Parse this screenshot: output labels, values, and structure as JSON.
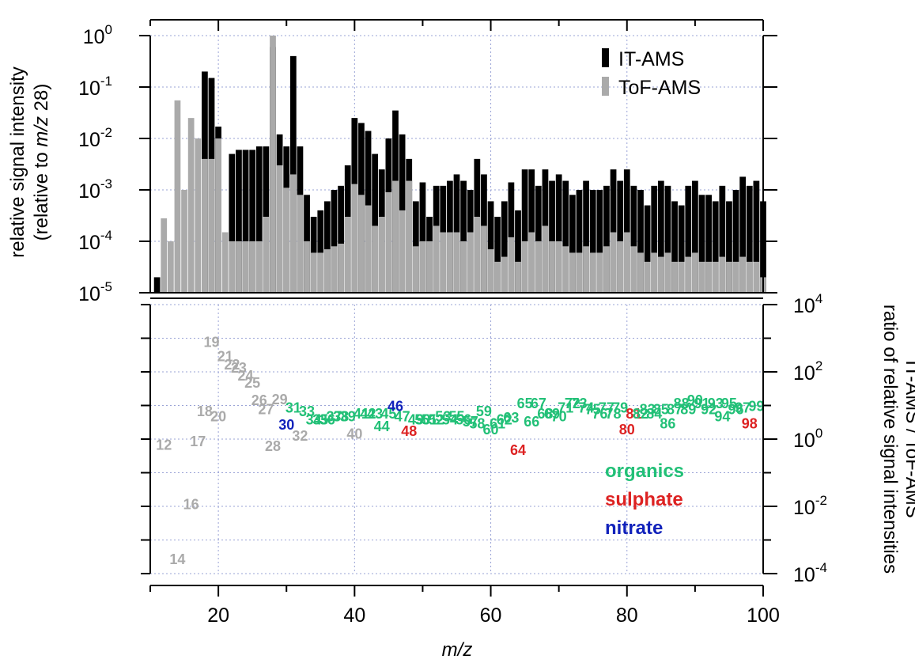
{
  "chart_data": [
    {
      "type": "bar",
      "panel": "top",
      "yscale": "log",
      "ylim": [
        1e-05,
        1
      ],
      "xlim": [
        10,
        100
      ],
      "ylabel_line1": "relative signal intensity",
      "ylabel_line2_prefix": "(relative to ",
      "ylabel_line2_italic": "m/z",
      "ylabel_line2_suffix": " 28)",
      "ytick_labels": [
        {
          "base": "10",
          "exp": "-5",
          "value": 1e-05
        },
        {
          "base": "10",
          "exp": "-4",
          "value": 0.0001
        },
        {
          "base": "10",
          "exp": "-3",
          "value": 0.001
        },
        {
          "base": "10",
          "exp": "-2",
          "value": 0.01
        },
        {
          "base": "10",
          "exp": "-1",
          "value": 0.1
        },
        {
          "base": "10",
          "exp": "0",
          "value": 1
        }
      ],
      "legend": [
        {
          "name": "IT-AMS",
          "color": "#000000"
        },
        {
          "name": "ToF-AMS",
          "color": "#aaaaaa"
        }
      ],
      "legend_position": "top-right",
      "grid": true,
      "x": [
        11,
        12,
        13,
        14,
        15,
        16,
        17,
        18,
        19,
        20,
        21,
        22,
        23,
        24,
        25,
        26,
        27,
        28,
        29,
        30,
        31,
        32,
        33,
        34,
        35,
        36,
        37,
        38,
        39,
        40,
        41,
        42,
        43,
        44,
        45,
        46,
        47,
        48,
        49,
        50,
        51,
        52,
        53,
        54,
        55,
        56,
        57,
        58,
        59,
        60,
        61,
        62,
        63,
        64,
        65,
        66,
        67,
        68,
        69,
        70,
        71,
        72,
        73,
        74,
        75,
        76,
        77,
        78,
        79,
        80,
        81,
        82,
        83,
        84,
        85,
        86,
        87,
        88,
        89,
        90,
        91,
        92,
        93,
        94,
        95,
        96,
        97,
        98,
        99,
        100
      ],
      "series": [
        {
          "name": "IT-AMS",
          "values": [
            2e-05,
            1e-05,
            1e-05,
            1e-05,
            1e-05,
            1e-05,
            1e-05,
            0.2,
            0.15,
            0.017,
            1e-05,
            0.005,
            0.006,
            0.006,
            0.006,
            0.007,
            0.007,
            0.6,
            0.012,
            0.007,
            0.4,
            0.007,
            0.0008,
            0.0003,
            0.0004,
            0.0006,
            0.001,
            0.0012,
            0.003,
            0.025,
            0.02,
            0.014,
            0.005,
            0.0025,
            0.01,
            0.035,
            0.012,
            0.004,
            0.0006,
            0.0014,
            0.0003,
            0.0012,
            0.0012,
            0.0015,
            0.002,
            0.0015,
            0.001,
            0.004,
            0.002,
            0.0006,
            0.0003,
            0.0006,
            0.0014,
            0.0004,
            0.0025,
            0.0025,
            0.0012,
            0.0025,
            0.0015,
            0.002,
            0.0015,
            0.0008,
            0.001,
            0.0015,
            0.001,
            0.001,
            0.0012,
            0.0025,
            0.0015,
            0.0025,
            0.0012,
            0.001,
            0.0005,
            0.0012,
            0.0015,
            0.0012,
            0.0006,
            0.0005,
            0.0012,
            0.0015,
            0.0008,
            0.0008,
            0.0006,
            0.0012,
            0.0006,
            0.001,
            0.0018,
            0.0012,
            0.0015,
            0.0006
          ],
          "color": "#000000"
        },
        {
          "name": "ToF-AMS",
          "values": [
            1e-05,
            0.00028,
            0.0001,
            0.055,
            0.001,
            0.025,
            0.01,
            0.004,
            0.004,
            0.01,
            0.00015,
            0.0001,
            0.0001,
            0.0001,
            0.0001,
            0.0001,
            0.0003,
            1.0,
            0.003,
            0.0011,
            0.002,
            0.0008,
            0.0001,
            6e-05,
            6e-05,
            7e-05,
            8e-05,
            9e-05,
            0.0003,
            0.0013,
            0.0008,
            0.0005,
            0.0002,
            0.0003,
            0.0009,
            0.0015,
            0.0004,
            0.0015,
            8e-05,
            0.0001,
            0.0001,
            0.0002,
            0.00015,
            0.00015,
            0.00015,
            0.0001,
            0.00015,
            0.0003,
            0.0002,
            7e-05,
            4e-05,
            5e-05,
            0.00012,
            4e-05,
            0.0001,
            0.00015,
            0.0001,
            0.0002,
            0.0001,
            0.0001,
            8e-05,
            6e-05,
            6e-05,
            8e-05,
            6e-05,
            6e-05,
            8e-05,
            0.00015,
            0.0001,
            0.00015,
            8e-05,
            6e-05,
            4e-05,
            6e-05,
            5e-05,
            6e-05,
            4e-05,
            4e-05,
            5e-05,
            6e-05,
            4e-05,
            4e-05,
            4e-05,
            5e-05,
            4e-05,
            4e-05,
            5e-05,
            4e-05,
            4e-05,
            2e-05
          ],
          "color": "#aaaaaa"
        }
      ]
    },
    {
      "type": "scatter",
      "panel": "bottom",
      "marker": "text-label",
      "yscale": "log",
      "ylim": [
        0.0001,
        10000.0
      ],
      "xlim": [
        10,
        100
      ],
      "xlabel": "m/z",
      "xtick_labels": [
        "20",
        "40",
        "60",
        "80",
        "100"
      ],
      "xticks": [
        20,
        40,
        60,
        80,
        100
      ],
      "ylabel_line1": "ratio of relative signal intensities",
      "ylabel_line2": "IT-AMS / ToF-AMS",
      "ytick_labels": [
        {
          "base": "10",
          "exp": "-4",
          "value": 0.0001
        },
        {
          "base": "10",
          "exp": "-2",
          "value": 0.01
        },
        {
          "base": "10",
          "exp": "0",
          "value": 1
        },
        {
          "base": "10",
          "exp": "2",
          "value": 100
        },
        {
          "base": "10",
          "exp": "4",
          "value": 10000
        }
      ],
      "yaxis_side": "right",
      "grid": true,
      "legend": [
        {
          "name": "organics",
          "color": "#22c077"
        },
        {
          "name": "sulphate",
          "color": "#dd2222"
        },
        {
          "name": "nitrate",
          "color": "#1122bb"
        }
      ],
      "legend_position": "bottom-right",
      "groups": [
        {
          "name": "other",
          "color": "#aaaaaa"
        },
        {
          "name": "organics",
          "color": "#22c077"
        },
        {
          "name": "sulphate",
          "color": "#dd2222"
        },
        {
          "name": "nitrate",
          "color": "#1122bb"
        }
      ],
      "points": [
        {
          "label": "12",
          "x": 12,
          "y": 0.7,
          "group": "other"
        },
        {
          "label": "14",
          "x": 14,
          "y": 0.00028,
          "group": "other"
        },
        {
          "label": "16",
          "x": 16,
          "y": 0.012,
          "group": "other"
        },
        {
          "label": "17",
          "x": 17,
          "y": 0.9,
          "group": "other"
        },
        {
          "label": "18",
          "x": 18,
          "y": 7,
          "group": "other"
        },
        {
          "label": "19",
          "x": 19,
          "y": 800,
          "group": "other"
        },
        {
          "label": "20",
          "x": 20,
          "y": 5,
          "group": "other"
        },
        {
          "label": "21",
          "x": 21,
          "y": 300,
          "group": "other"
        },
        {
          "label": "22",
          "x": 22,
          "y": 170,
          "group": "other"
        },
        {
          "label": "23",
          "x": 23,
          "y": 140,
          "group": "other"
        },
        {
          "label": "24",
          "x": 24,
          "y": 80,
          "group": "other"
        },
        {
          "label": "25",
          "x": 25,
          "y": 50,
          "group": "other"
        },
        {
          "label": "26",
          "x": 26,
          "y": 15,
          "group": "other"
        },
        {
          "label": "27",
          "x": 27,
          "y": 8,
          "group": "other"
        },
        {
          "label": "28",
          "x": 28,
          "y": 0.65,
          "group": "other"
        },
        {
          "label": "29",
          "x": 29,
          "y": 16,
          "group": "other"
        },
        {
          "label": "30",
          "x": 30,
          "y": 2.8,
          "group": "nitrate"
        },
        {
          "label": "31",
          "x": 31,
          "y": 9,
          "group": "organics"
        },
        {
          "label": "32",
          "x": 32,
          "y": 1.3,
          "group": "other"
        },
        {
          "label": "33",
          "x": 33,
          "y": 7,
          "group": "organics"
        },
        {
          "label": "34",
          "x": 34,
          "y": 4,
          "group": "organics"
        },
        {
          "label": "35",
          "x": 35,
          "y": 4,
          "group": "organics"
        },
        {
          "label": "36",
          "x": 36,
          "y": 4,
          "group": "organics"
        },
        {
          "label": "37",
          "x": 37,
          "y": 5,
          "group": "organics"
        },
        {
          "label": "38",
          "x": 38,
          "y": 5,
          "group": "organics"
        },
        {
          "label": "39",
          "x": 39,
          "y": 5,
          "group": "organics"
        },
        {
          "label": "40",
          "x": 40,
          "y": 1.5,
          "group": "other"
        },
        {
          "label": "41",
          "x": 41,
          "y": 6,
          "group": "organics"
        },
        {
          "label": "42",
          "x": 42,
          "y": 6,
          "group": "organics"
        },
        {
          "label": "43",
          "x": 43,
          "y": 6,
          "group": "organics"
        },
        {
          "label": "44",
          "x": 44,
          "y": 2.5,
          "group": "organics"
        },
        {
          "label": "45",
          "x": 45,
          "y": 6,
          "group": "organics"
        },
        {
          "label": "46",
          "x": 46,
          "y": 10,
          "group": "nitrate"
        },
        {
          "label": "47",
          "x": 47,
          "y": 5,
          "group": "organics"
        },
        {
          "label": "48",
          "x": 48,
          "y": 1.8,
          "group": "sulphate"
        },
        {
          "label": "49",
          "x": 49,
          "y": 4,
          "group": "organics"
        },
        {
          "label": "50",
          "x": 50,
          "y": 4,
          "group": "organics"
        },
        {
          "label": "51",
          "x": 51,
          "y": 4,
          "group": "organics"
        },
        {
          "label": "52",
          "x": 52,
          "y": 4,
          "group": "organics"
        },
        {
          "label": "53",
          "x": 53,
          "y": 5,
          "group": "organics"
        },
        {
          "label": "54",
          "x": 54,
          "y": 4,
          "group": "organics"
        },
        {
          "label": "55",
          "x": 55,
          "y": 5,
          "group": "organics"
        },
        {
          "label": "56",
          "x": 56,
          "y": 4,
          "group": "organics"
        },
        {
          "label": "57",
          "x": 57,
          "y": 3.5,
          "group": "organics"
        },
        {
          "label": "58",
          "x": 58,
          "y": 3,
          "group": "organics"
        },
        {
          "label": "59",
          "x": 59,
          "y": 7,
          "group": "organics"
        },
        {
          "label": "60",
          "x": 60,
          "y": 2,
          "group": "organics"
        },
        {
          "label": "61",
          "x": 61,
          "y": 3,
          "group": "organics"
        },
        {
          "label": "62",
          "x": 62,
          "y": 4,
          "group": "organics"
        },
        {
          "label": "63",
          "x": 63,
          "y": 4.5,
          "group": "organics"
        },
        {
          "label": "64",
          "x": 64,
          "y": 0.5,
          "group": "sulphate"
        },
        {
          "label": "65",
          "x": 65,
          "y": 12,
          "group": "organics"
        },
        {
          "label": "66",
          "x": 66,
          "y": 3.5,
          "group": "organics"
        },
        {
          "label": "67",
          "x": 67,
          "y": 12,
          "group": "organics"
        },
        {
          "label": "68",
          "x": 68,
          "y": 6,
          "group": "organics"
        },
        {
          "label": "69",
          "x": 69,
          "y": 6,
          "group": "organics"
        },
        {
          "label": "70",
          "x": 70,
          "y": 5,
          "group": "organics"
        },
        {
          "label": "71",
          "x": 71,
          "y": 9,
          "group": "organics"
        },
        {
          "label": "72",
          "x": 72,
          "y": 12,
          "group": "organics"
        },
        {
          "label": "73",
          "x": 73,
          "y": 12,
          "group": "organics"
        },
        {
          "label": "74",
          "x": 74,
          "y": 9,
          "group": "organics"
        },
        {
          "label": "75",
          "x": 75,
          "y": 8,
          "group": "organics"
        },
        {
          "label": "76",
          "x": 76,
          "y": 6,
          "group": "organics"
        },
        {
          "label": "77",
          "x": 77,
          "y": 9,
          "group": "organics"
        },
        {
          "label": "78",
          "x": 78,
          "y": 6,
          "group": "organics"
        },
        {
          "label": "79",
          "x": 79,
          "y": 9,
          "group": "organics"
        },
        {
          "label": "80",
          "x": 80,
          "y": 2,
          "group": "sulphate"
        },
        {
          "label": "81",
          "x": 81,
          "y": 6,
          "group": "sulphate"
        },
        {
          "label": "82",
          "x": 82,
          "y": 6,
          "group": "organics"
        },
        {
          "label": "83",
          "x": 83,
          "y": 8,
          "group": "organics"
        },
        {
          "label": "84",
          "x": 84,
          "y": 6,
          "group": "organics"
        },
        {
          "label": "85",
          "x": 85,
          "y": 8,
          "group": "organics"
        },
        {
          "label": "86",
          "x": 86,
          "y": 3,
          "group": "organics"
        },
        {
          "label": "87",
          "x": 87,
          "y": 8,
          "group": "organics"
        },
        {
          "label": "88",
          "x": 88,
          "y": 12,
          "group": "organics"
        },
        {
          "label": "89",
          "x": 89,
          "y": 8,
          "group": "organics"
        },
        {
          "label": "90",
          "x": 90,
          "y": 15,
          "group": "organics"
        },
        {
          "label": "91",
          "x": 91,
          "y": 12,
          "group": "organics"
        },
        {
          "label": "92",
          "x": 92,
          "y": 8,
          "group": "organics"
        },
        {
          "label": "93",
          "x": 93,
          "y": 12,
          "group": "organics"
        },
        {
          "label": "94",
          "x": 94,
          "y": 5,
          "group": "organics"
        },
        {
          "label": "95",
          "x": 95,
          "y": 12,
          "group": "organics"
        },
        {
          "label": "96",
          "x": 96,
          "y": 8,
          "group": "organics"
        },
        {
          "label": "97",
          "x": 97,
          "y": 9,
          "group": "organics"
        },
        {
          "label": "98",
          "x": 98,
          "y": 3,
          "group": "sulphate"
        },
        {
          "label": "99",
          "x": 99,
          "y": 10,
          "group": "organics"
        }
      ]
    }
  ]
}
